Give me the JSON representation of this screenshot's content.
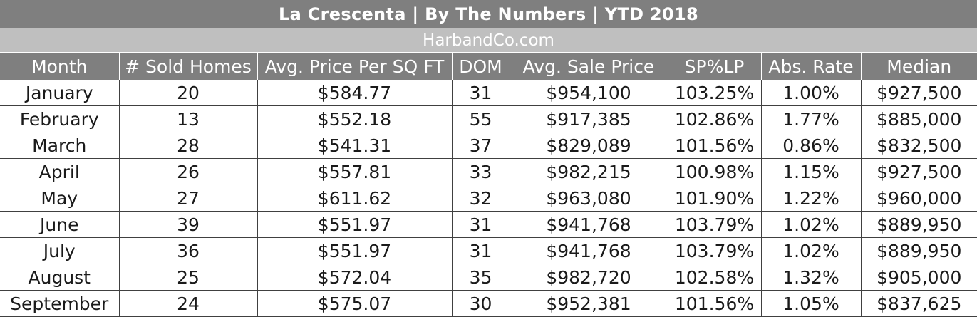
{
  "header": {
    "title": "La Crescenta  |  By The Numbers  |  YTD 2018",
    "subtitle": "HarbandCo.com"
  },
  "colors": {
    "header_bg": "#7f7f7f",
    "subheader_bg": "#bfbfbf",
    "header_text": "#ffffff",
    "grid_line": "#404040"
  },
  "chart_data": {
    "type": "table",
    "title": "La Crescenta  |  By The Numbers  |  YTD 2018",
    "subtitle": "HarbandCo.com",
    "columns": [
      "Month",
      "# Sold Homes",
      "Avg. Price Per SQ FT",
      "DOM",
      "Avg. Sale Price",
      "SP%LP",
      "Abs. Rate",
      "Median"
    ],
    "rows": [
      [
        "January",
        "20",
        "$584.77",
        "31",
        "$954,100",
        "103.25%",
        "1.00%",
        "$927,500"
      ],
      [
        "February",
        "13",
        "$552.18",
        "55",
        "$917,385",
        "102.86%",
        "1.77%",
        "$885,000"
      ],
      [
        "March",
        "28",
        "$541.31",
        "37",
        "$829,089",
        "101.56%",
        "0.86%",
        "$832,500"
      ],
      [
        "April",
        "26",
        "$557.81",
        "33",
        "$982,215",
        "100.98%",
        "1.15%",
        "$927,500"
      ],
      [
        "May",
        "27",
        "$611.62",
        "32",
        "$963,080",
        "101.90%",
        "1.22%",
        "$960,000"
      ],
      [
        "June",
        "39",
        "$551.97",
        "31",
        "$941,768",
        "103.79%",
        "1.02%",
        "$889,950"
      ],
      [
        "July",
        "36",
        "$551.97",
        "31",
        "$941,768",
        "103.79%",
        "1.02%",
        "$889,950"
      ],
      [
        "August",
        "25",
        "$572.04",
        "35",
        "$982,720",
        "102.58%",
        "1.32%",
        "$905,000"
      ],
      [
        "September",
        "24",
        "$575.07",
        "30",
        "$952,381",
        "101.56%",
        "1.05%",
        "$837,625"
      ]
    ]
  }
}
